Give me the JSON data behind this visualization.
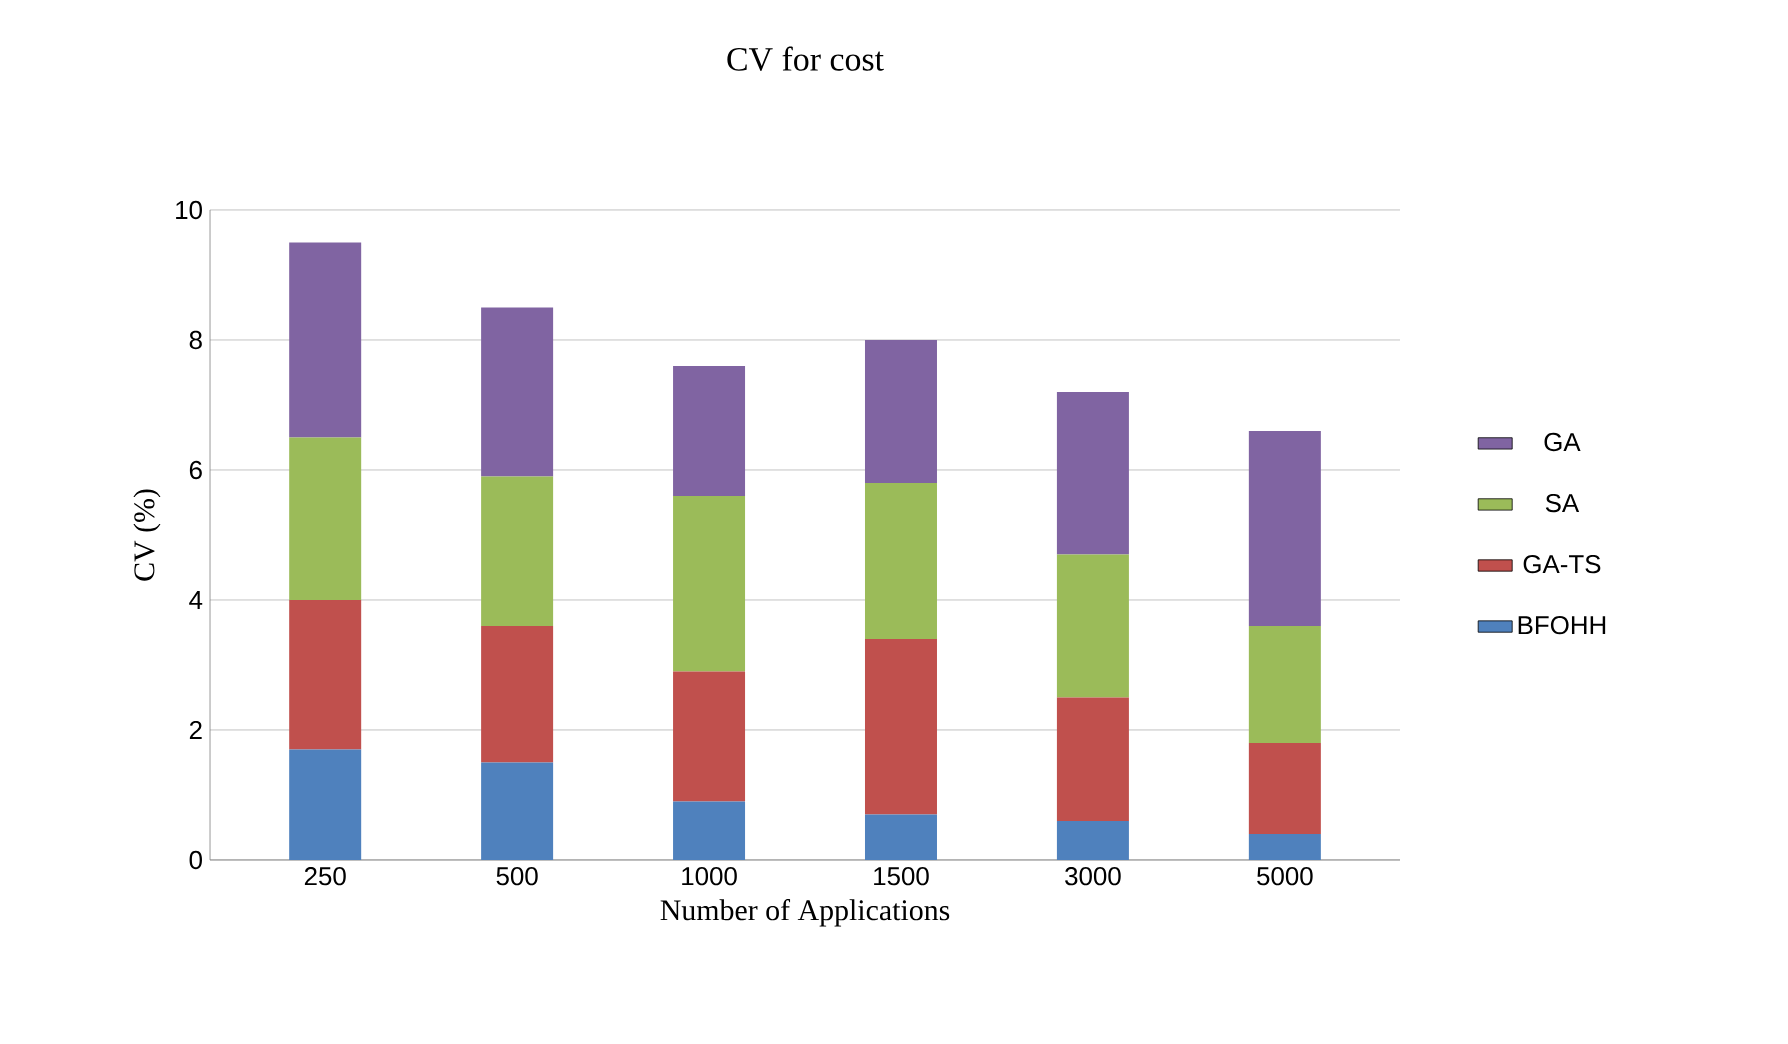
{
  "chart_data": {
    "type": "bar",
    "stacked": true,
    "title": "CV for cost",
    "xlabel": "Number of Applications",
    "ylabel": "CV (%)",
    "categories": [
      "250",
      "500",
      "1000",
      "1500",
      "3000",
      "5000"
    ],
    "series": [
      {
        "name": "BFOHH",
        "color": "#4f81bd",
        "values": [
          1.7,
          1.5,
          0.9,
          0.7,
          0.6,
          0.4
        ]
      },
      {
        "name": "GA-TS",
        "color": "#c0504d",
        "values": [
          2.3,
          2.1,
          2.0,
          2.7,
          1.9,
          1.4
        ]
      },
      {
        "name": "SA",
        "color": "#9bbb59",
        "values": [
          2.5,
          2.3,
          2.7,
          2.4,
          2.2,
          1.8
        ]
      },
      {
        "name": "GA",
        "color": "#8064a2",
        "values": [
          3.0,
          2.6,
          2.0,
          2.2,
          2.5,
          3.0
        ]
      }
    ],
    "ylim": [
      0,
      10
    ],
    "yticks": [
      0,
      2,
      4,
      6,
      8,
      10
    ],
    "grid": "y",
    "legend": "right"
  }
}
